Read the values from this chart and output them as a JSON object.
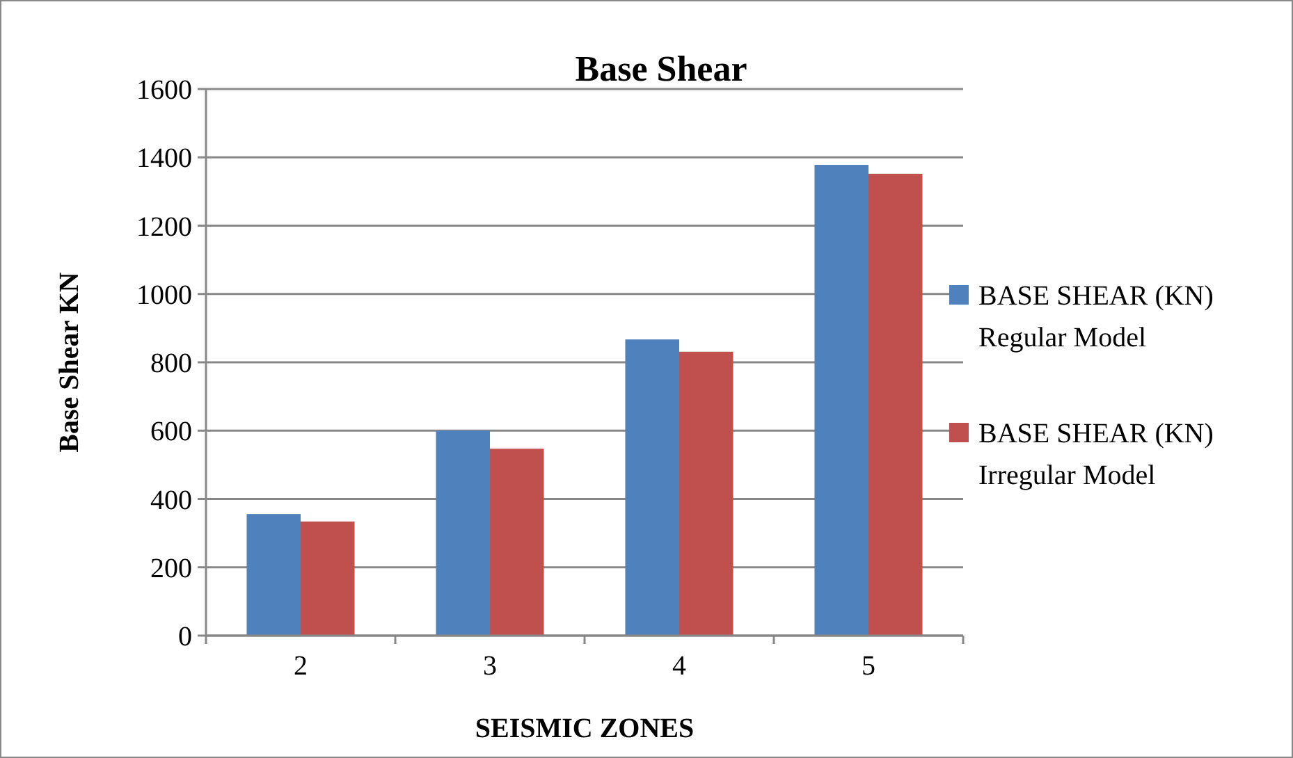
{
  "chart_data": {
    "type": "bar",
    "title": "Base Shear",
    "xlabel": "SEISMIC ZONES",
    "ylabel": "Base Shear KN",
    "categories": [
      "2",
      "3",
      "4",
      "5"
    ],
    "series": [
      {
        "name": "BASE SHEAR (KN) Regular Model",
        "color": "#4f81bd",
        "values": [
          356,
          600,
          867,
          1378
        ]
      },
      {
        "name": "BASE SHEAR (KN) Irregular Model",
        "color": "#c0504d",
        "values": [
          334,
          547,
          831,
          1352
        ]
      }
    ],
    "ylim": [
      0,
      1600
    ],
    "yticks": [
      0,
      200,
      400,
      600,
      800,
      1000,
      1200,
      1400,
      1600
    ],
    "grid": "y",
    "legend": "right"
  }
}
